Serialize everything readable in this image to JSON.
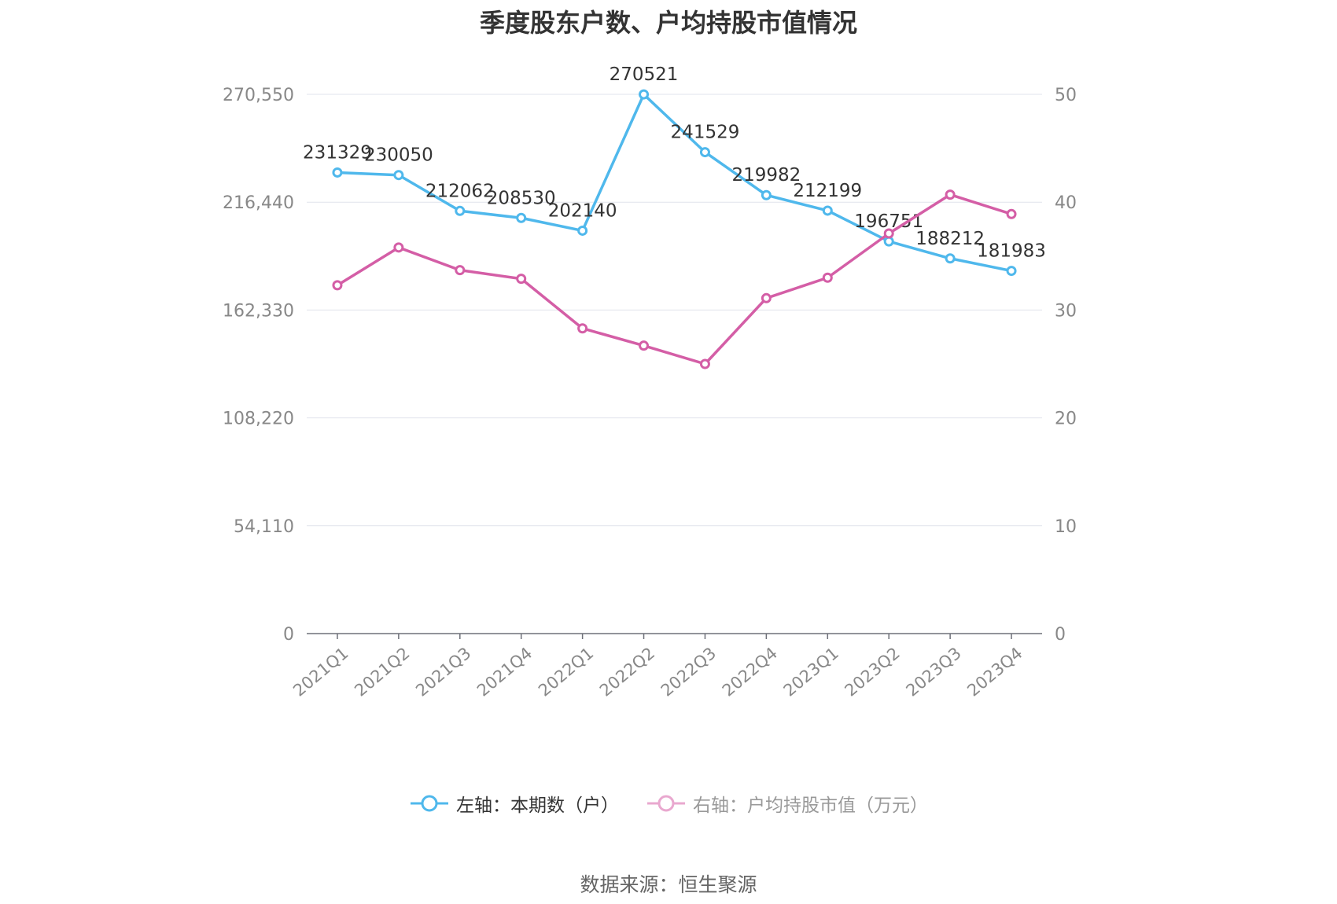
{
  "chart_data": {
    "type": "line",
    "title": "季度股东户数、户均持股市值情况",
    "categories": [
      "2021Q1",
      "2021Q2",
      "2021Q3",
      "2021Q4",
      "2022Q1",
      "2022Q2",
      "2022Q3",
      "2022Q4",
      "2023Q1",
      "2023Q2",
      "2023Q3",
      "2023Q4"
    ],
    "y_left": {
      "ylim": [
        0,
        270550
      ],
      "ticks": [
        "0",
        "54,110",
        "108,220",
        "162,330",
        "216,440",
        "270,550"
      ]
    },
    "y_right": {
      "ylim": [
        0,
        50
      ],
      "ticks": [
        "0",
        "10",
        "20",
        "30",
        "40",
        "50"
      ]
    },
    "grid": true,
    "legend_position": "bottom",
    "series": [
      {
        "name": "左轴：本期数（户）",
        "axis": "left",
        "color": "#4FB8EC",
        "values": [
          231329,
          230050,
          212062,
          208530,
          202140,
          270521,
          241529,
          219982,
          212199,
          196751,
          188212,
          181983
        ],
        "labels": [
          "231329",
          "230050",
          "212062",
          "208530",
          "202140",
          "270521",
          "241529",
          "219982",
          "212199",
          "196751",
          "188212",
          "181983"
        ]
      },
      {
        "name": "右轴：户均持股市值（万元）",
        "axis": "right",
        "color": "#D45EA6",
        "values": [
          32.3,
          35.8,
          33.7,
          32.9,
          28.3,
          26.7,
          25.0,
          31.1,
          33.0,
          37.1,
          40.7,
          38.9
        ]
      }
    ]
  },
  "source": "数据来源：恒生聚源"
}
